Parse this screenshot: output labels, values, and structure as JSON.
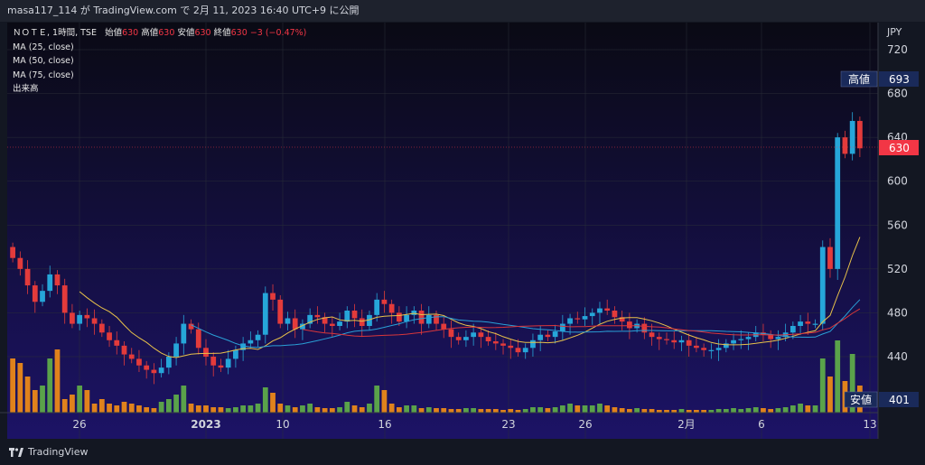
{
  "header": {
    "publish_line": "masa117_114 が TradingView.com で 2月 11, 2023 16:40 UTC+9 に公開"
  },
  "legend": {
    "symbol_line": "ＮＯＴＥ, 1時間, TSE",
    "open_label": "始値",
    "open_value": "630",
    "high_label": "高値",
    "high_value": "630",
    "low_label": "安値",
    "low_value": "630",
    "close_label": "終値",
    "close_value": "630",
    "change": "−3 (−0.47%)",
    "ma1": "MA (25, close)",
    "ma2": "MA (50, close)",
    "ma3": "MA (75, close)",
    "volume": "出来高"
  },
  "axis": {
    "currency": "JPY",
    "high_tag_label": "高値",
    "high_tag_value": "693",
    "last_value": "630",
    "low_tag_label": "安値",
    "low_tag_value": "401"
  },
  "branding": {
    "logo_text": "TradingView"
  },
  "colors": {
    "up": "#26a6d9",
    "down": "#e33b3b",
    "ma25": "#e8c24a",
    "ma50": "#2a9fd6",
    "ma75": "#d8363b",
    "vol_up": "#5aa24a",
    "vol_down": "#e0821c",
    "bg_top": "#0a0a1a",
    "bg_bottom": "#1a1260"
  },
  "chart_data": {
    "type": "candlestick",
    "y_ticks": [
      720,
      680,
      640,
      600,
      560,
      520,
      480,
      440
    ],
    "x_ticks": [
      "26",
      "2023",
      "10",
      "16",
      "23",
      "26",
      "2月",
      "6",
      "13"
    ],
    "high_value": 693,
    "low_value": 401,
    "last_close": 630,
    "candle_closes_approx": [
      530,
      520,
      505,
      490,
      500,
      515,
      505,
      480,
      470,
      478,
      475,
      470,
      462,
      455,
      450,
      442,
      438,
      432,
      428,
      425,
      430,
      440,
      452,
      470,
      465,
      448,
      440,
      432,
      430,
      438,
      446,
      452,
      455,
      460,
      498,
      492,
      470,
      475,
      465,
      470,
      478,
      476,
      470,
      468,
      472,
      482,
      475,
      468,
      478,
      492,
      488,
      480,
      472,
      478,
      482,
      470,
      478,
      470,
      465,
      458,
      455,
      458,
      462,
      458,
      454,
      452,
      450,
      448,
      444,
      448,
      455,
      460,
      458,
      463,
      470,
      475,
      474,
      477,
      480,
      484,
      482,
      476,
      472,
      466,
      470,
      462,
      458,
      456,
      455,
      453,
      455,
      450,
      448,
      446,
      446,
      448,
      452,
      455,
      456,
      458,
      462,
      460,
      456,
      458,
      462,
      468,
      472,
      470,
      470,
      540,
      520,
      640,
      625,
      655,
      630
    ]
  }
}
